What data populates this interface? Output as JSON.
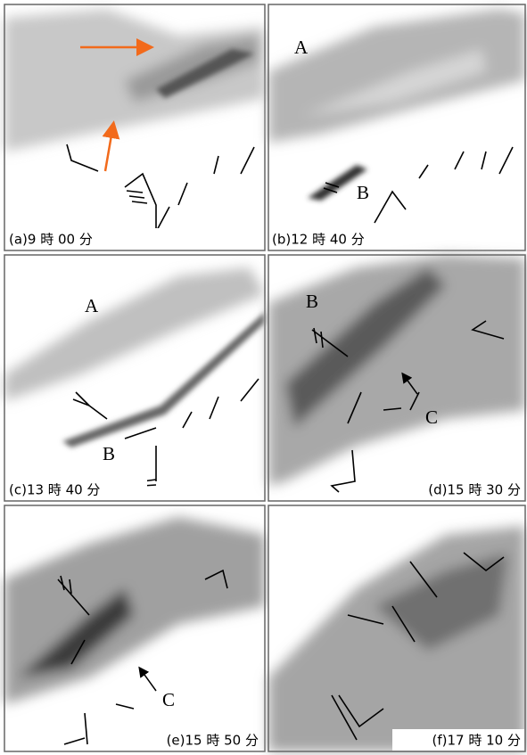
{
  "panels": [
    {
      "label": "(a)9 時 00 分",
      "annotations": []
    },
    {
      "label": "(b)12 時 40 分",
      "annotations": [
        "A",
        "B"
      ]
    },
    {
      "label": "(c)13 時 40 分",
      "annotations": [
        "A",
        "B"
      ]
    },
    {
      "label": "(d)15 時 30 分",
      "annotations": [
        "B",
        "C"
      ]
    },
    {
      "label": "(e)15 時 50 分",
      "annotations": [
        "C"
      ]
    },
    {
      "label": "(f)17 時 10 分",
      "annotations": []
    }
  ]
}
